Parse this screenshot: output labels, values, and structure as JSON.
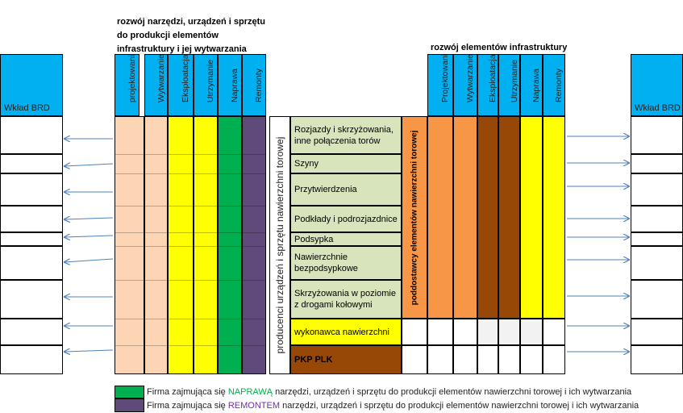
{
  "headers": {
    "left_group": [
      "rozwój narzędzi,  urządzeń i sprzętu",
      "do produkcji elementów",
      "infrastruktury i jej wytwarzania"
    ],
    "right_group": "rozwój elementów infrastruktury",
    "left_columns": [
      "projektowanie",
      "Wytwarzanie",
      "Eksploatacja",
      "Utrzymanie",
      "Naprawa",
      "Remonty"
    ],
    "right_columns": [
      "Projektowanie",
      "Wytwarzanie",
      "Eksploatacja",
      "Utrzymanie",
      "Naprawa",
      "Remonty"
    ]
  },
  "side_labels": {
    "left": "Wkład BRD",
    "right": "Wkład BRD"
  },
  "center_rows": [
    "Rozjazdy i skrzyżowania, inne połączenia torów",
    "Szyny",
    "Przytwierdzenia",
    "Podkłady i podrozjazdnice",
    "Podsypka",
    "Nawierzchnie bezpodsypkowe",
    "Skrzyżowania w poziomie z drogami kołowymi"
  ],
  "contractor_row": "wykonawca nawierzchni",
  "owner_row": "PKP PLK",
  "vertical_labels": {
    "producers": "producenci urządzeń i sprzętu nawierzchni torowej",
    "suppliers": "poddostawcy elementów nawierzchni torowej"
  },
  "legend": {
    "repair": {
      "prefix": "Firma zajmująca się ",
      "highlight": "NAPRAWĄ",
      "suffix": "  narzędzi, urządzeń i sprzętu do produkcji elementów nawierzchni torowej i ich wytwarzania"
    },
    "overhaul": {
      "prefix": "Firma zajmująca się ",
      "highlight": "REMONTEM",
      "suffix": "  narzędzi, urządzeń i sprzętu do produkcji elementów nawierzchni torowej i ich wytwarzania"
    }
  },
  "colors": {
    "header_blue": "#00b0f0",
    "peach": "#fcd5b4",
    "yellow": "#ffff00",
    "green": "#00b050",
    "purple": "#604a7b",
    "light_green": "#d8e4bc",
    "orange": "#f79646",
    "brown": "#974706",
    "arrow": "#4f81bd"
  }
}
